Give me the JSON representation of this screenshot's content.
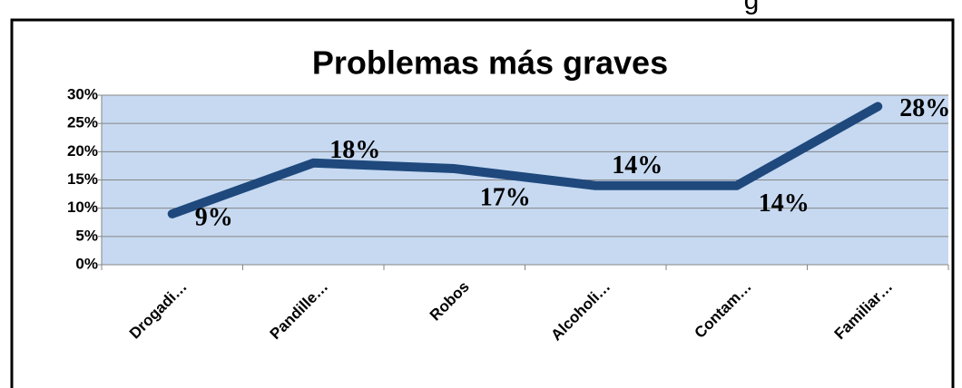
{
  "caption_fragment": "g",
  "chart_data": {
    "type": "line",
    "title": "Problemas más graves",
    "categories": [
      "Drogadi…",
      "Pandille…",
      "Robos",
      "Alcoholi…",
      "Contam…",
      "Familiar…"
    ],
    "series": [
      {
        "name": "Problemas más graves",
        "color": "#1f497d",
        "values": [
          9,
          18,
          17,
          14,
          14,
          28
        ],
        "value_labels": [
          "9%",
          "18%",
          "17%",
          "14%",
          "14%",
          "28%"
        ]
      }
    ],
    "ylim": [
      0,
      30
    ],
    "yticks": [
      {
        "value": 0,
        "label": "0%"
      },
      {
        "value": 5,
        "label": "5%"
      },
      {
        "value": 10,
        "label": "10%"
      },
      {
        "value": 15,
        "label": "15%"
      },
      {
        "value": 20,
        "label": "20%"
      },
      {
        "value": 25,
        "label": "25%"
      },
      {
        "value": 30,
        "label": "30%"
      }
    ],
    "grid": true,
    "plot_background": "#c6d9f1"
  }
}
